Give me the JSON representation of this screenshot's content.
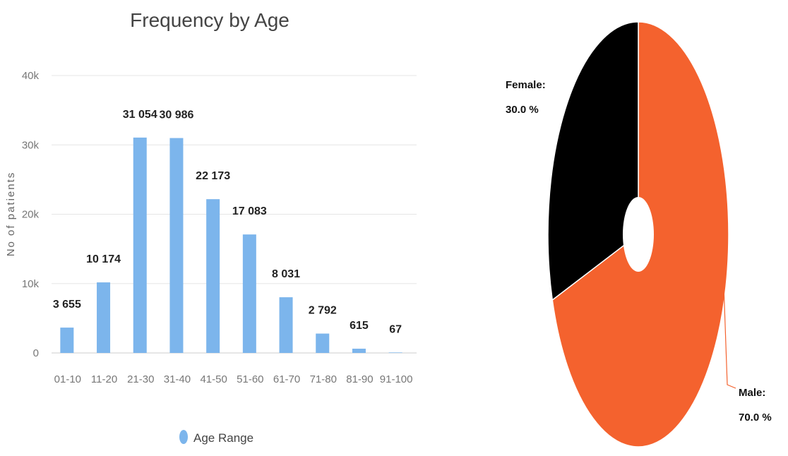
{
  "chart_data": [
    {
      "type": "bar",
      "title": "Frequency by Age",
      "xlabel": "",
      "ylabel": "No of patients",
      "categories": [
        "01-10",
        "11-20",
        "21-30",
        "31-40",
        "41-50",
        "51-60",
        "61-70",
        "71-80",
        "81-90",
        "91-100"
      ],
      "series": [
        {
          "name": "Age Range",
          "values": [
            3655,
            10174,
            31054,
            30986,
            22173,
            17083,
            8031,
            2792,
            615,
            67
          ],
          "labels": [
            "3 655",
            "10 174",
            "31 054",
            "30 986",
            "22 173",
            "17 083",
            "8 031",
            "2 792",
            "615",
            "67"
          ]
        }
      ],
      "ylim": [
        0,
        40000
      ],
      "yticks": [
        {
          "value": 0,
          "label": "0"
        },
        {
          "value": 10000,
          "label": "10k"
        },
        {
          "value": 20000,
          "label": "20k"
        },
        {
          "value": 30000,
          "label": "30k"
        },
        {
          "value": 40000,
          "label": "40k"
        }
      ],
      "grid": true,
      "legend_position": "bottom",
      "color": "#7cb5ec"
    },
    {
      "type": "pie",
      "title": "",
      "slices": [
        {
          "label": "Male",
          "value": 70.0,
          "text": "70.0 %",
          "color": "#f4622e"
        },
        {
          "label": "Female",
          "value": 30.0,
          "text": "30.0 %",
          "color": "#000000"
        }
      ],
      "donut": true
    }
  ]
}
